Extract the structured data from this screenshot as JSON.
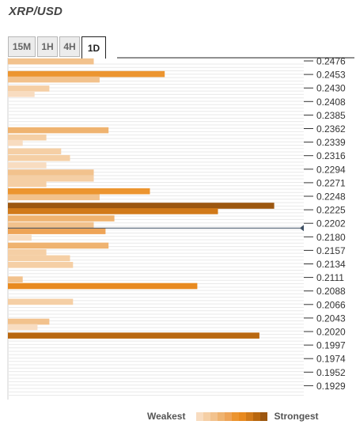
{
  "title": "XRP/USD",
  "tabs": [
    {
      "label": "15M",
      "active": false
    },
    {
      "label": "1H",
      "active": false
    },
    {
      "label": "4H",
      "active": false
    },
    {
      "label": "1D",
      "active": true
    }
  ],
  "legend": {
    "weakest_label": "Weakest",
    "strongest_label": "Strongest",
    "colors": [
      "#f8dcc0",
      "#f5cfa5",
      "#f2c28d",
      "#efb370",
      "#eea457",
      "#ec9530",
      "#e88a20",
      "#d17a1a",
      "#b8670f",
      "#9c5710"
    ]
  },
  "chart_data": {
    "type": "bar",
    "orientation": "horizontal",
    "title": "XRP/USD",
    "xlabel": "",
    "ylabel": "",
    "ylim": [
      0.1918,
      0.2484
    ],
    "grid": true,
    "y_tick_labels": [
      "0.2476",
      "0.2453",
      "0.2430",
      "0.2408",
      "0.2385",
      "0.2362",
      "0.2339",
      "0.2316",
      "0.2294",
      "0.2271",
      "0.2248",
      "0.2225",
      "0.2202",
      "0.2180",
      "0.2157",
      "0.2134",
      "0.2111",
      "0.2088",
      "0.2066",
      "0.2043",
      "0.2020",
      "0.1997",
      "0.1974",
      "0.1952",
      "0.1929"
    ],
    "current_price": 0.2202,
    "strength_max": 100,
    "bars": [
      {
        "price": 0.2478,
        "strength": 29,
        "level": 2
      },
      {
        "price": 0.2457,
        "strength": 53,
        "level": 5
      },
      {
        "price": 0.2448,
        "strength": 31,
        "level": 2
      },
      {
        "price": 0.2433,
        "strength": 14,
        "level": 1
      },
      {
        "price": 0.2424,
        "strength": 9,
        "level": 0
      },
      {
        "price": 0.2364,
        "strength": 34,
        "level": 3
      },
      {
        "price": 0.2352,
        "strength": 13,
        "level": 1
      },
      {
        "price": 0.2343,
        "strength": 5,
        "level": 0
      },
      {
        "price": 0.2329,
        "strength": 18,
        "level": 1
      },
      {
        "price": 0.2318,
        "strength": 21,
        "level": 1
      },
      {
        "price": 0.2306,
        "strength": 13,
        "level": 0
      },
      {
        "price": 0.2294,
        "strength": 29,
        "level": 2
      },
      {
        "price": 0.2284,
        "strength": 29,
        "level": 1
      },
      {
        "price": 0.2275,
        "strength": 13,
        "level": 1
      },
      {
        "price": 0.2263,
        "strength": 48,
        "level": 5
      },
      {
        "price": 0.2253,
        "strength": 31,
        "level": 2
      },
      {
        "price": 0.2239,
        "strength": 90,
        "level": 9
      },
      {
        "price": 0.223,
        "strength": 71,
        "level": 7
      },
      {
        "price": 0.2218,
        "strength": 36,
        "level": 3
      },
      {
        "price": 0.2207,
        "strength": 29,
        "level": 2
      },
      {
        "price": 0.2197,
        "strength": 33,
        "level": 4
      },
      {
        "price": 0.2186,
        "strength": 8,
        "level": 0
      },
      {
        "price": 0.2173,
        "strength": 34,
        "level": 3
      },
      {
        "price": 0.2162,
        "strength": 13,
        "level": 1
      },
      {
        "price": 0.2152,
        "strength": 21,
        "level": 1
      },
      {
        "price": 0.2141,
        "strength": 22,
        "level": 1
      },
      {
        "price": 0.2117,
        "strength": 5,
        "level": 2
      },
      {
        "price": 0.2106,
        "strength": 64,
        "level": 6
      },
      {
        "price": 0.208,
        "strength": 22,
        "level": 1
      },
      {
        "price": 0.2047,
        "strength": 14,
        "level": 2
      },
      {
        "price": 0.2038,
        "strength": 10,
        "level": 0
      },
      {
        "price": 0.2024,
        "strength": 85,
        "level": 8
      }
    ]
  }
}
